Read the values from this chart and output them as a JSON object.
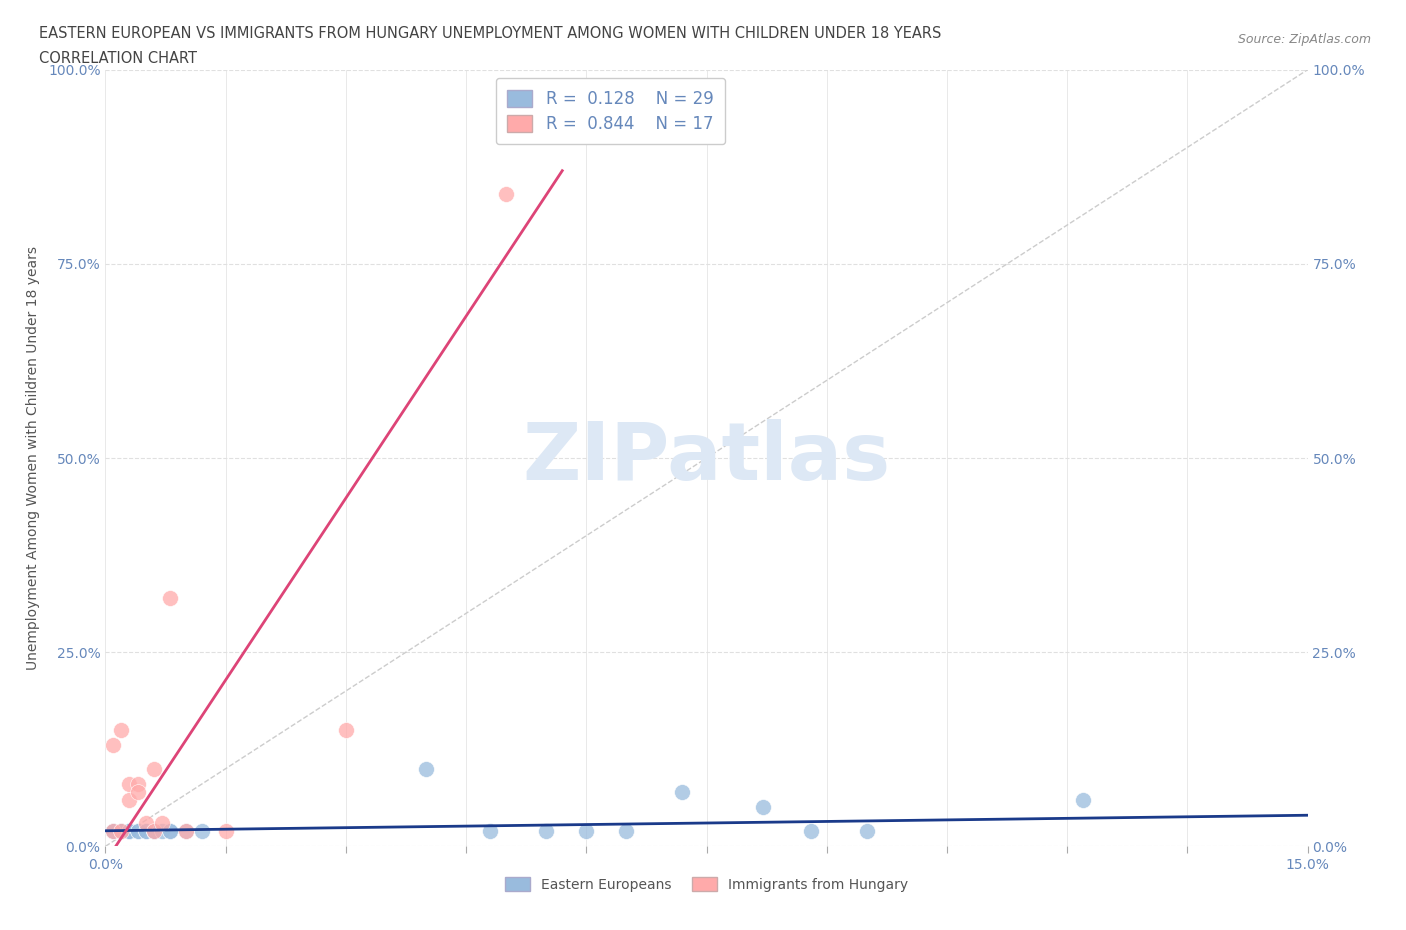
{
  "title_line1": "EASTERN EUROPEAN VS IMMIGRANTS FROM HUNGARY UNEMPLOYMENT AMONG WOMEN WITH CHILDREN UNDER 18 YEARS",
  "title_line2": "CORRELATION CHART",
  "source": "Source: ZipAtlas.com",
  "ylabel": "Unemployment Among Women with Children Under 18 years",
  "xlim": [
    0.0,
    0.15
  ],
  "ylim": [
    0.0,
    1.0
  ],
  "xticks": [
    0.0,
    0.015,
    0.03,
    0.045,
    0.06,
    0.075,
    0.09,
    0.105,
    0.12,
    0.135,
    0.15
  ],
  "yticks": [
    0.0,
    0.25,
    0.5,
    0.75,
    1.0
  ],
  "ytick_labels": [
    "0.0%",
    "25.0%",
    "50.0%",
    "75.0%",
    "100.0%"
  ],
  "blue_color": "#99bbdd",
  "pink_color": "#ffaaaa",
  "blue_line_color": "#1a3a8a",
  "pink_line_color": "#dd4477",
  "ref_line_color": "#cccccc",
  "watermark_color": "#dde8f5",
  "legend_label1": "Eastern Europeans",
  "legend_label2": "Immigrants from Hungary",
  "R1": 0.128,
  "N1": 29,
  "R2": 0.844,
  "N2": 17,
  "blue_points_x": [
    0.001,
    0.001,
    0.002,
    0.002,
    0.003,
    0.003,
    0.003,
    0.004,
    0.004,
    0.005,
    0.005,
    0.006,
    0.006,
    0.006,
    0.007,
    0.008,
    0.008,
    0.01,
    0.012,
    0.04,
    0.048,
    0.055,
    0.06,
    0.065,
    0.072,
    0.082,
    0.088,
    0.095,
    0.122
  ],
  "blue_points_y": [
    0.02,
    0.02,
    0.02,
    0.02,
    0.02,
    0.02,
    0.02,
    0.02,
    0.02,
    0.02,
    0.02,
    0.02,
    0.02,
    0.02,
    0.02,
    0.02,
    0.02,
    0.02,
    0.02,
    0.1,
    0.02,
    0.02,
    0.02,
    0.02,
    0.07,
    0.05,
    0.02,
    0.02,
    0.06
  ],
  "pink_points_x": [
    0.001,
    0.001,
    0.002,
    0.002,
    0.003,
    0.003,
    0.004,
    0.004,
    0.005,
    0.006,
    0.006,
    0.007,
    0.008,
    0.01,
    0.015,
    0.03,
    0.05
  ],
  "pink_points_y": [
    0.02,
    0.13,
    0.02,
    0.15,
    0.06,
    0.08,
    0.08,
    0.07,
    0.03,
    0.02,
    0.1,
    0.03,
    0.32,
    0.02,
    0.02,
    0.15,
    0.84
  ],
  "pink_line_x0": 0.0,
  "pink_line_y0": -0.02,
  "pink_line_x1": 0.057,
  "pink_line_y1": 0.87,
  "blue_line_x0": 0.0,
  "blue_line_y0": 0.02,
  "blue_line_x1": 0.15,
  "blue_line_y1": 0.04,
  "background_color": "#ffffff",
  "grid_color": "#e0e0e0",
  "tick_color": "#6688bb"
}
